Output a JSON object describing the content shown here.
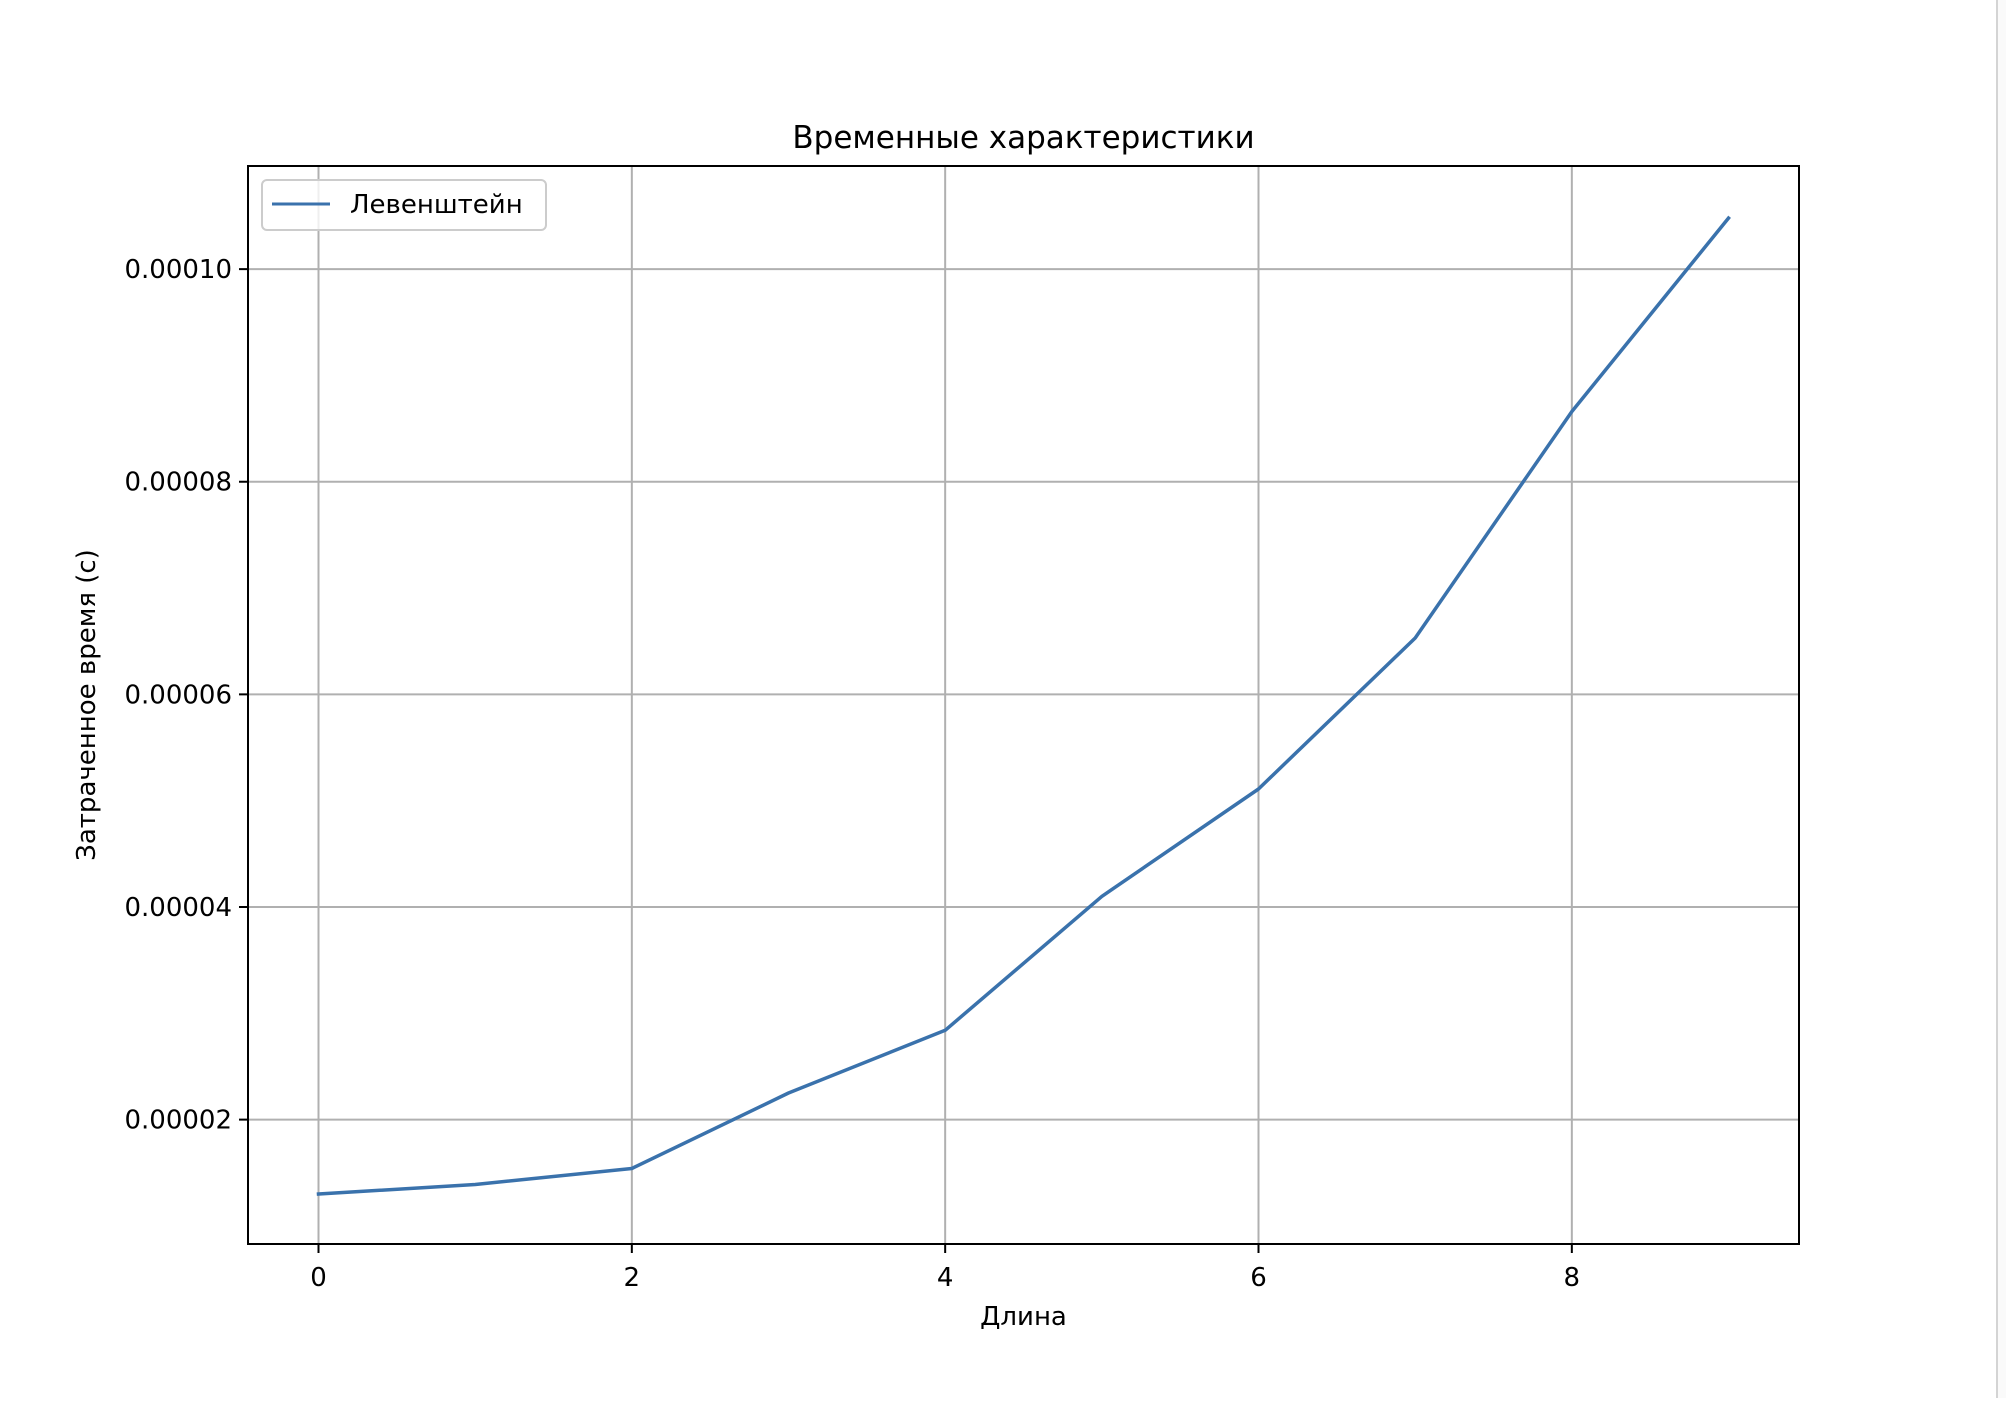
{
  "chart_data": {
    "type": "line",
    "title": "Временные характеристики",
    "xlabel": "Длина",
    "ylabel": "Затраченное время (с)",
    "xlim": [
      -0.45,
      9.45
    ],
    "ylim": [
      8.3e-06,
      0.0001097
    ],
    "x_ticks": [
      0,
      2,
      4,
      6,
      8
    ],
    "x_tick_labels": [
      "0",
      "2",
      "4",
      "6",
      "8"
    ],
    "y_ticks": [
      2e-05,
      4e-05,
      6e-05,
      8e-05,
      0.0001
    ],
    "y_tick_labels": [
      "0.00002",
      "0.00004",
      "0.00006",
      "0.00008",
      "0.00010"
    ],
    "grid": true,
    "legend_position": "top-left",
    "series": [
      {
        "name": "Левенштейн",
        "color": "#3a72ac",
        "x": [
          0,
          1,
          2,
          3,
          4,
          5,
          6,
          7,
          8,
          9
        ],
        "values": [
          1.3e-05,
          1.39e-05,
          1.54e-05,
          2.25e-05,
          2.84e-05,
          4.1e-05,
          5.11e-05,
          6.53e-05,
          8.66e-05,
          0.0001048
        ]
      }
    ]
  }
}
